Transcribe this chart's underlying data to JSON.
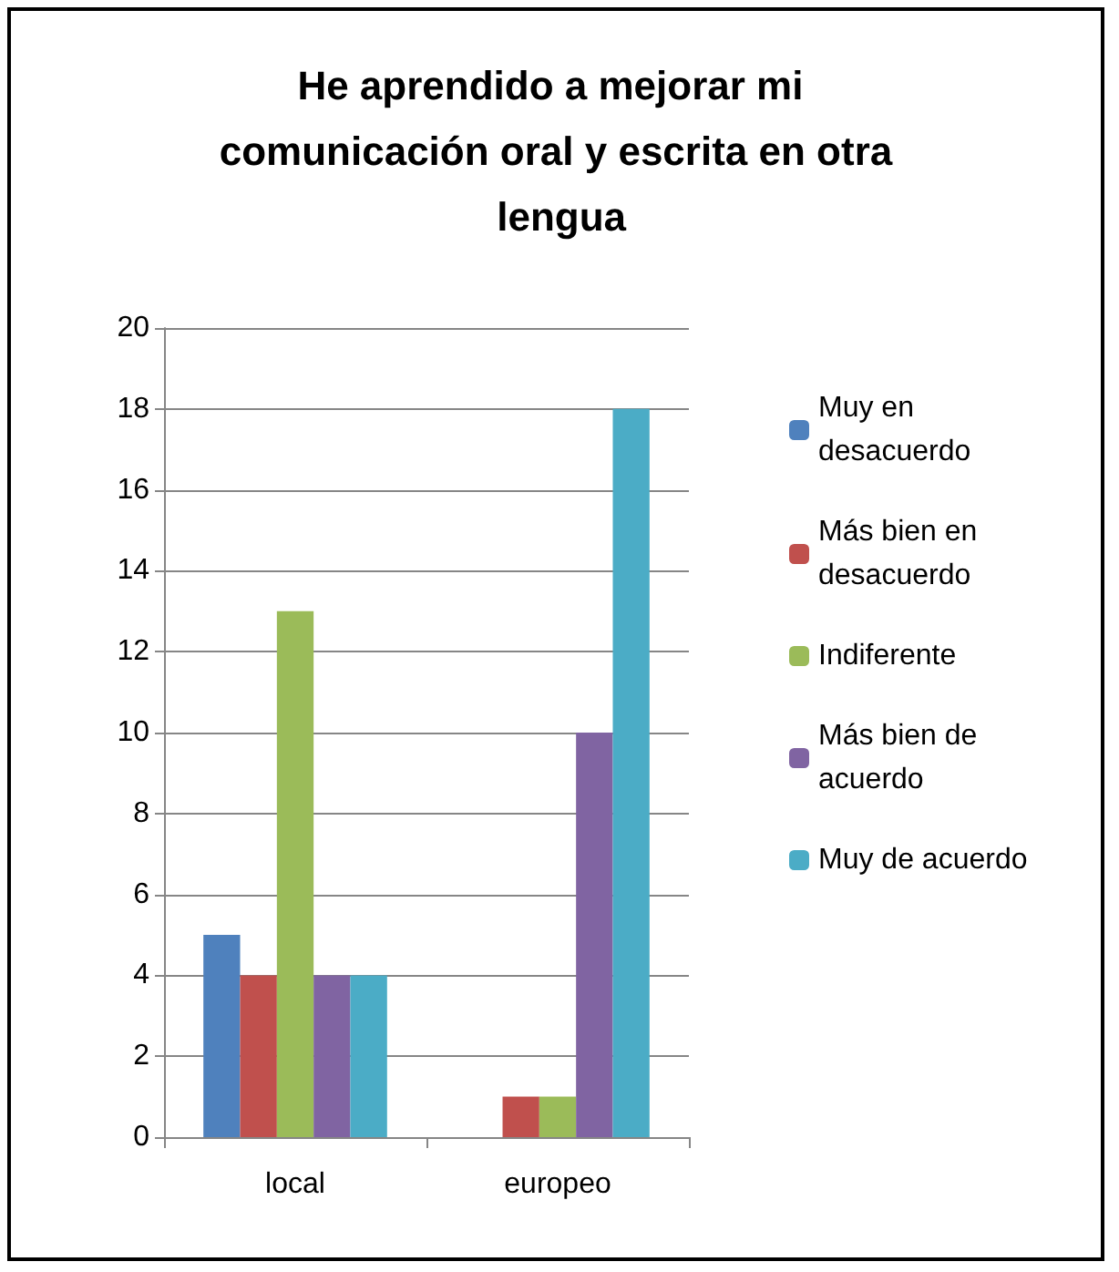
{
  "chart_data": {
    "type": "bar",
    "title": "He aprendido a mejorar mi comunicación oral y escrita en otra lengua",
    "categories": [
      "local",
      "europeo"
    ],
    "series": [
      {
        "name": "Muy en desacuerdo",
        "color": "#4f81bd",
        "values": [
          5,
          0
        ]
      },
      {
        "name": "Más bien en desacuerdo",
        "color": "#c0504d",
        "values": [
          4,
          1
        ]
      },
      {
        "name": "Indiferente",
        "color": "#9bbb59",
        "values": [
          13,
          1
        ]
      },
      {
        "name": "Más bien de acuerdo",
        "color": "#8064a2",
        "values": [
          4,
          10
        ]
      },
      {
        "name": "Muy de acuerdo",
        "color": "#4bacc6",
        "values": [
          4,
          18
        ]
      }
    ],
    "ylim": [
      0,
      20
    ],
    "yticks": [
      0,
      2,
      4,
      6,
      8,
      10,
      12,
      14,
      16,
      18,
      20
    ],
    "grid": "y",
    "legend": "right"
  }
}
